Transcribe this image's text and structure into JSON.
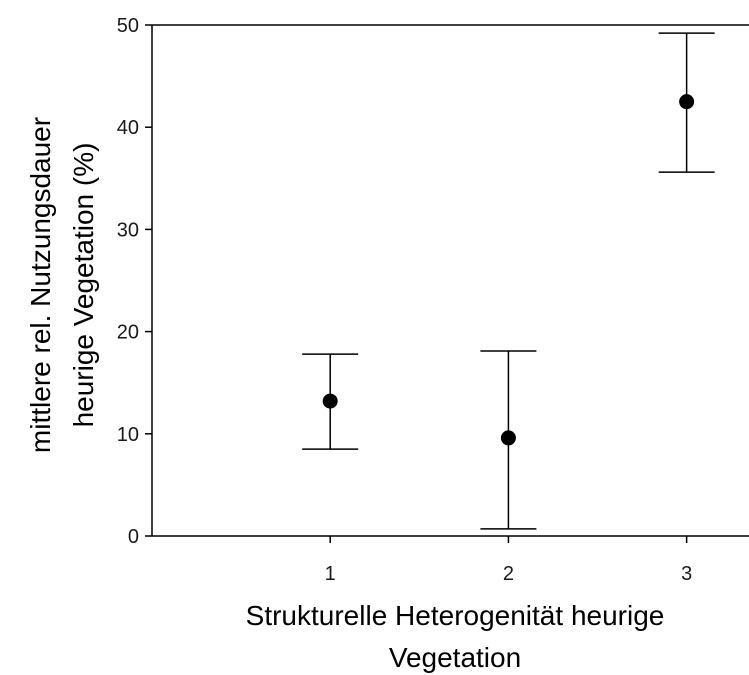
{
  "chart_data": {
    "type": "scatter",
    "xlabel_lines": [
      "Strukturelle Heterogenität heurige",
      "Vegetation"
    ],
    "ylabel_lines": [
      "mittlere rel. Nutzungsdauer",
      "heurige Vegetation (%)"
    ],
    "xlim": [
      0,
      3.35
    ],
    "ylim": [
      0,
      50
    ],
    "x_ticks": [
      1,
      2,
      3
    ],
    "y_ticks": [
      0,
      10,
      20,
      30,
      40,
      50
    ],
    "grid": false,
    "legend": "none",
    "points": [
      {
        "x": 1,
        "y": 13.2,
        "err_low": 8.5,
        "err_high": 17.8
      },
      {
        "x": 2,
        "y": 9.6,
        "err_low": 0.7,
        "err_high": 18.1
      },
      {
        "x": 3,
        "y": 42.5,
        "err_low": 35.6,
        "err_high": 49.2
      }
    ],
    "colors": {
      "marker": "#000000",
      "axis": "#000000"
    }
  }
}
